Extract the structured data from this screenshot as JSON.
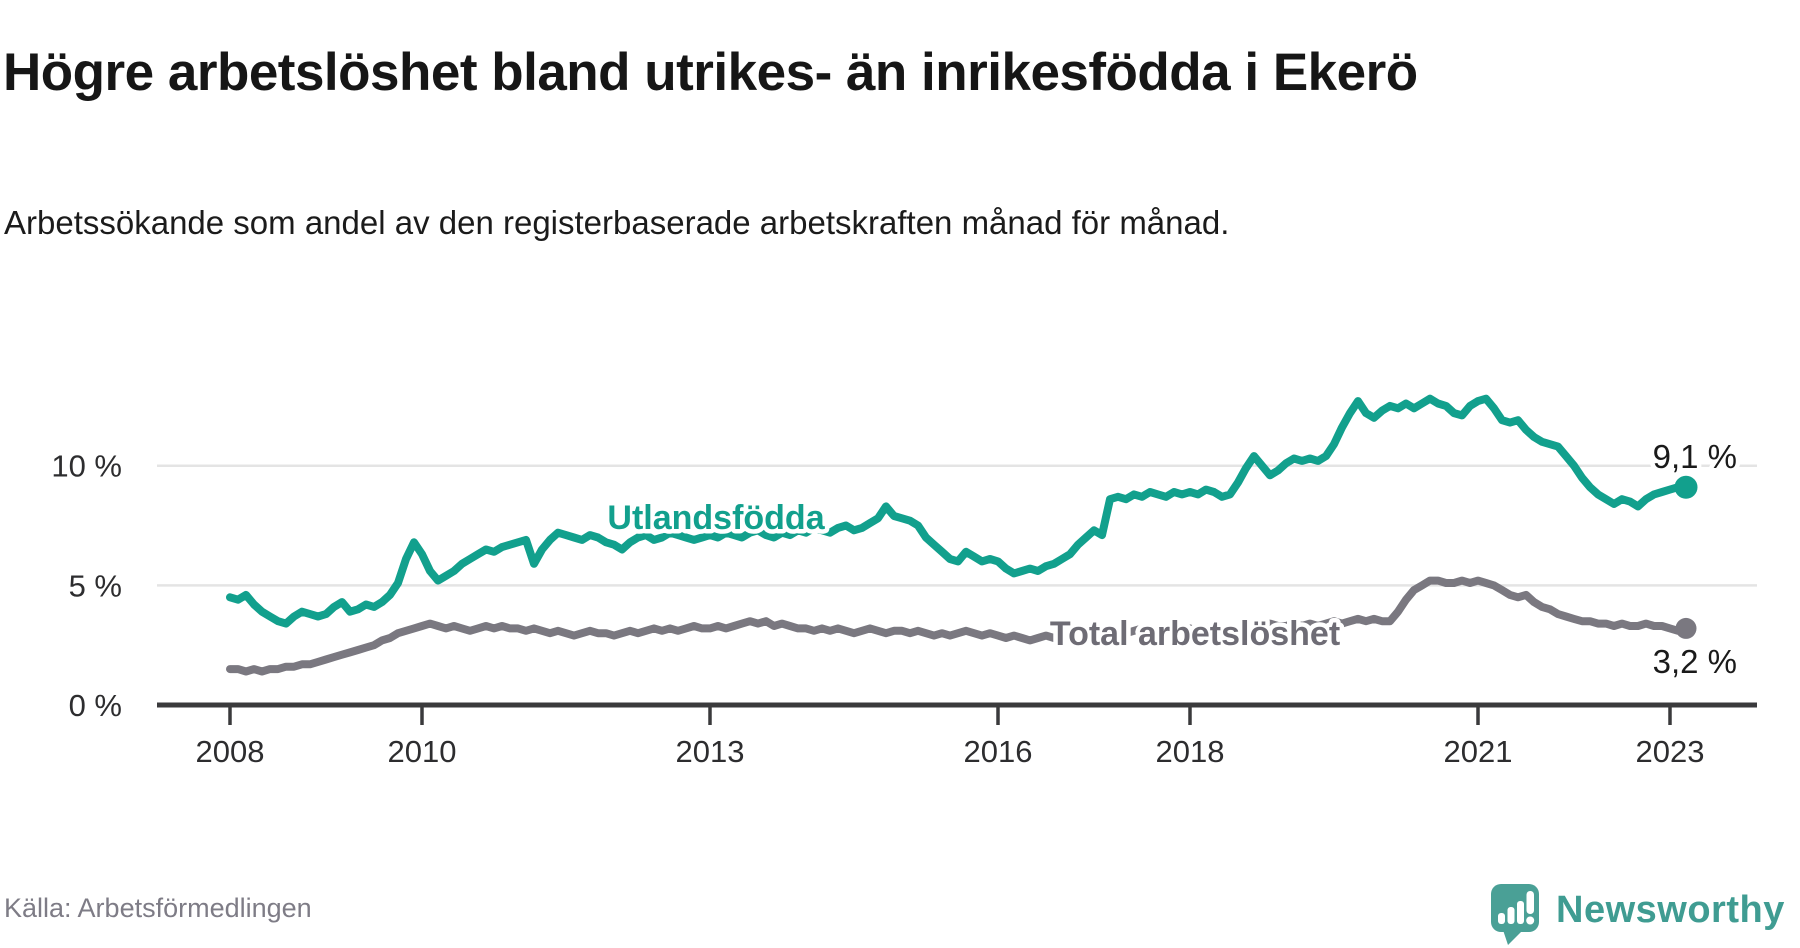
{
  "header": {
    "title": "Högre arbetslöshet bland utrikes- än inrikesfödda i Ekerö",
    "subtitle": "Arbetssökande som andel av den registerbaserade arbetskraften månad för månad."
  },
  "chart_data": {
    "type": "line",
    "title": "Högre arbetslöshet bland utrikes- än inrikesfödda i Ekerö",
    "subtitle": "Arbetssökande som andel av den registerbaserade arbetskraften månad för månad.",
    "unit": "percent",
    "x_start": "2008-01",
    "x_end": "2023-03",
    "x_frequency": "monthly",
    "x_tick_labels": [
      "2008",
      "2010",
      "2013",
      "2016",
      "2018",
      "2021",
      "2023"
    ],
    "y_ticks": [
      0,
      5,
      10
    ],
    "y_tick_labels": [
      "0 %",
      "5 %",
      "10 %"
    ],
    "ylim": [
      0,
      13.5
    ],
    "grid": "horizontal",
    "legend_position": "inline-labels",
    "series": [
      {
        "name": "Utlandsfödda",
        "color": "#12a08d",
        "label_color": "#12a08d",
        "end_value": 9.1,
        "end_value_label": "9,1 %",
        "values": [
          4.5,
          4.4,
          4.6,
          4.2,
          3.9,
          3.7,
          3.5,
          3.4,
          3.7,
          3.9,
          3.8,
          3.7,
          3.8,
          4.1,
          4.3,
          3.9,
          4.0,
          4.2,
          4.1,
          4.3,
          4.6,
          5.1,
          6.1,
          6.8,
          6.3,
          5.6,
          5.2,
          5.4,
          5.6,
          5.9,
          6.1,
          6.3,
          6.5,
          6.4,
          6.6,
          6.7,
          6.8,
          6.9,
          5.9,
          6.5,
          6.9,
          7.2,
          7.1,
          7.0,
          6.9,
          7.1,
          7.0,
          6.8,
          6.7,
          6.5,
          6.8,
          7.0,
          7.1,
          6.9,
          7.0,
          7.2,
          7.1,
          7.0,
          6.9,
          7.0,
          7.1,
          7.0,
          7.2,
          7.1,
          7.0,
          7.2,
          7.3,
          7.1,
          7.0,
          7.2,
          7.1,
          7.3,
          7.2,
          7.4,
          7.3,
          7.2,
          7.4,
          7.5,
          7.3,
          7.4,
          7.6,
          7.8,
          8.3,
          7.9,
          7.8,
          7.7,
          7.5,
          7.0,
          6.7,
          6.4,
          6.1,
          6.0,
          6.4,
          6.2,
          6.0,
          6.1,
          6.0,
          5.7,
          5.5,
          5.6,
          5.7,
          5.6,
          5.8,
          5.9,
          6.1,
          6.3,
          6.7,
          7.0,
          7.3,
          7.1,
          8.6,
          8.7,
          8.6,
          8.8,
          8.7,
          8.9,
          8.8,
          8.7,
          8.9,
          8.8,
          8.9,
          8.8,
          9.0,
          8.9,
          8.7,
          8.8,
          9.3,
          9.9,
          10.4,
          10.0,
          9.6,
          9.8,
          10.1,
          10.3,
          10.2,
          10.3,
          10.2,
          10.4,
          10.9,
          11.6,
          12.2,
          12.7,
          12.2,
          12.0,
          12.3,
          12.5,
          12.4,
          12.6,
          12.4,
          12.6,
          12.8,
          12.6,
          12.5,
          12.2,
          12.1,
          12.5,
          12.7,
          12.8,
          12.4,
          11.9,
          11.8,
          11.9,
          11.5,
          11.2,
          11.0,
          10.9,
          10.8,
          10.4,
          10.0,
          9.5,
          9.1,
          8.8,
          8.6,
          8.4,
          8.6,
          8.5,
          8.3,
          8.6,
          8.8,
          8.9,
          9.0,
          9.1,
          9.1
        ]
      },
      {
        "name": "Total arbetslöshet",
        "color": "#7a7880",
        "label_color": "#6e6c75",
        "end_value": 3.2,
        "end_value_label": "3,2 %",
        "values": [
          1.5,
          1.5,
          1.4,
          1.5,
          1.4,
          1.5,
          1.5,
          1.6,
          1.6,
          1.7,
          1.7,
          1.8,
          1.9,
          2.0,
          2.1,
          2.2,
          2.3,
          2.4,
          2.5,
          2.7,
          2.8,
          3.0,
          3.1,
          3.2,
          3.3,
          3.4,
          3.3,
          3.2,
          3.3,
          3.2,
          3.1,
          3.2,
          3.3,
          3.2,
          3.3,
          3.2,
          3.2,
          3.1,
          3.2,
          3.1,
          3.0,
          3.1,
          3.0,
          2.9,
          3.0,
          3.1,
          3.0,
          3.0,
          2.9,
          3.0,
          3.1,
          3.0,
          3.1,
          3.2,
          3.1,
          3.2,
          3.1,
          3.2,
          3.3,
          3.2,
          3.2,
          3.3,
          3.2,
          3.3,
          3.4,
          3.5,
          3.4,
          3.5,
          3.3,
          3.4,
          3.3,
          3.2,
          3.2,
          3.1,
          3.2,
          3.1,
          3.2,
          3.1,
          3.0,
          3.1,
          3.2,
          3.1,
          3.0,
          3.1,
          3.1,
          3.0,
          3.1,
          3.0,
          2.9,
          3.0,
          2.9,
          3.0,
          3.1,
          3.0,
          2.9,
          3.0,
          2.9,
          2.8,
          2.9,
          2.8,
          2.7,
          2.8,
          2.9,
          2.8,
          2.9,
          3.0,
          2.9,
          3.0,
          3.0,
          3.1,
          3.0,
          3.1,
          3.0,
          3.1,
          3.2,
          3.1,
          3.2,
          3.1,
          3.2,
          3.1,
          3.2,
          3.1,
          3.2,
          3.3,
          3.2,
          3.1,
          3.2,
          3.3,
          3.2,
          3.3,
          3.4,
          3.3,
          3.3,
          3.4,
          3.3,
          3.4,
          3.3,
          3.4,
          3.5,
          3.4,
          3.5,
          3.6,
          3.5,
          3.6,
          3.5,
          3.5,
          3.9,
          4.4,
          4.8,
          5.0,
          5.2,
          5.2,
          5.1,
          5.1,
          5.2,
          5.1,
          5.2,
          5.1,
          5.0,
          4.8,
          4.6,
          4.5,
          4.6,
          4.3,
          4.1,
          4.0,
          3.8,
          3.7,
          3.6,
          3.5,
          3.5,
          3.4,
          3.4,
          3.3,
          3.4,
          3.3,
          3.3,
          3.4,
          3.3,
          3.3,
          3.2,
          3.1,
          3.2
        ]
      }
    ]
  },
  "footer": {
    "source": "Källa: Arbetsförmedlingen",
    "brand_name": "Newsworthy",
    "brand_color": "#3f9c92",
    "logo_icon": "speech-bubble-chart-icon"
  }
}
